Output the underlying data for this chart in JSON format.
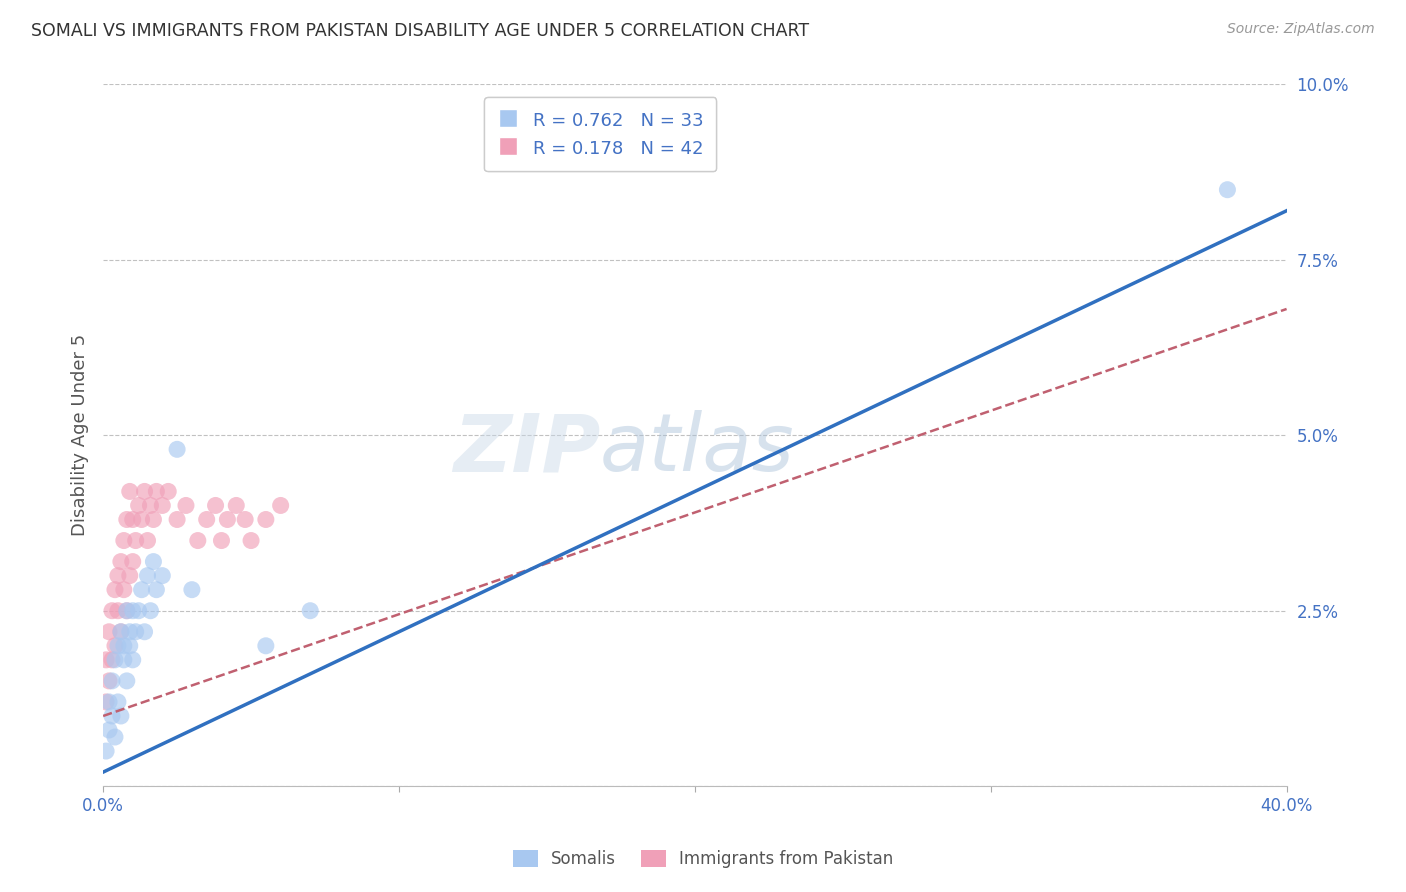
{
  "title": "SOMALI VS IMMIGRANTS FROM PAKISTAN DISABILITY AGE UNDER 5 CORRELATION CHART",
  "source": "Source: ZipAtlas.com",
  "ylabel": "Disability Age Under 5",
  "xlim": [
    0.0,
    0.4
  ],
  "ylim": [
    0.0,
    0.1
  ],
  "xticks": [
    0.0,
    0.1,
    0.2,
    0.3,
    0.4
  ],
  "xtick_labels_shown": [
    "0.0%",
    "",
    "",
    "",
    "40.0%"
  ],
  "yticks": [
    0.0,
    0.025,
    0.05,
    0.075,
    0.1
  ],
  "ytick_labels": [
    "",
    "2.5%",
    "5.0%",
    "7.5%",
    "10.0%"
  ],
  "legend_label1": "Somalis",
  "legend_label2": "Immigrants from Pakistan",
  "color_somali": "#A8C8F0",
  "color_pakistan": "#F0A0B8",
  "color_line_somali": "#3070C0",
  "color_line_pakistan": "#C06070",
  "axis_label_color": "#4472C4",
  "watermark_zip": "ZIP",
  "watermark_atlas": "atlas",
  "background_color": "#FFFFFF",
  "grid_color": "#BBBBBB",
  "somali_x": [
    0.001,
    0.002,
    0.002,
    0.003,
    0.003,
    0.004,
    0.004,
    0.005,
    0.005,
    0.006,
    0.006,
    0.007,
    0.007,
    0.008,
    0.008,
    0.009,
    0.009,
    0.01,
    0.01,
    0.011,
    0.012,
    0.013,
    0.014,
    0.015,
    0.016,
    0.017,
    0.018,
    0.02,
    0.025,
    0.03,
    0.055,
    0.07,
    0.38
  ],
  "somali_y": [
    0.005,
    0.008,
    0.012,
    0.01,
    0.015,
    0.007,
    0.018,
    0.012,
    0.02,
    0.01,
    0.022,
    0.018,
    0.02,
    0.015,
    0.025,
    0.02,
    0.022,
    0.018,
    0.025,
    0.022,
    0.025,
    0.028,
    0.022,
    0.03,
    0.025,
    0.032,
    0.028,
    0.03,
    0.048,
    0.028,
    0.02,
    0.025,
    0.085
  ],
  "pakistan_x": [
    0.001,
    0.001,
    0.002,
    0.002,
    0.003,
    0.003,
    0.004,
    0.004,
    0.005,
    0.005,
    0.006,
    0.006,
    0.007,
    0.007,
    0.008,
    0.008,
    0.009,
    0.009,
    0.01,
    0.01,
    0.011,
    0.012,
    0.013,
    0.014,
    0.015,
    0.016,
    0.017,
    0.018,
    0.02,
    0.022,
    0.025,
    0.028,
    0.032,
    0.035,
    0.038,
    0.04,
    0.042,
    0.045,
    0.048,
    0.05,
    0.055,
    0.06
  ],
  "pakistan_y": [
    0.012,
    0.018,
    0.015,
    0.022,
    0.018,
    0.025,
    0.02,
    0.028,
    0.025,
    0.03,
    0.022,
    0.032,
    0.028,
    0.035,
    0.025,
    0.038,
    0.03,
    0.042,
    0.032,
    0.038,
    0.035,
    0.04,
    0.038,
    0.042,
    0.035,
    0.04,
    0.038,
    0.042,
    0.04,
    0.042,
    0.038,
    0.04,
    0.035,
    0.038,
    0.04,
    0.035,
    0.038,
    0.04,
    0.038,
    0.035,
    0.038,
    0.04
  ],
  "somali_line_x": [
    0.0,
    0.4
  ],
  "somali_line_y": [
    0.002,
    0.082
  ],
  "pakistan_line_x": [
    0.0,
    0.4
  ],
  "pakistan_line_y": [
    0.01,
    0.068
  ]
}
